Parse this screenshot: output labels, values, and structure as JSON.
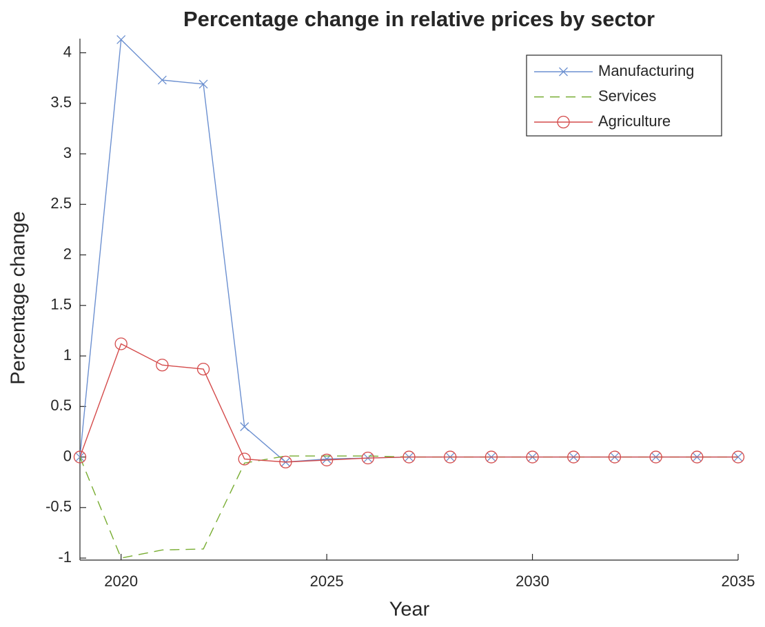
{
  "chart_data": {
    "type": "line",
    "title": "Percentage change in relative prices by sector",
    "x_label": "Year",
    "y_label": "Percentage change",
    "x": [
      2019,
      2020,
      2021,
      2022,
      2023,
      2024,
      2025,
      2026,
      2027,
      2028,
      2029,
      2030,
      2031,
      2032,
      2033,
      2034,
      2035
    ],
    "series": [
      {
        "name": "Manufacturing",
        "color": "#6b8fd0",
        "marker": "x",
        "line_style": "solid",
        "values": [
          0,
          4.13,
          3.73,
          3.69,
          0.3,
          -0.05,
          -0.02,
          -0.01,
          0,
          0,
          0,
          0,
          0,
          0,
          0,
          0,
          0
        ]
      },
      {
        "name": "Services",
        "color": "#77ac30",
        "marker": "none",
        "line_style": "dashed",
        "values": [
          0,
          -1.0,
          -0.92,
          -0.91,
          -0.06,
          0.01,
          0.01,
          0.01,
          0,
          0,
          0,
          0,
          0,
          0,
          0,
          0,
          0
        ]
      },
      {
        "name": "Agriculture",
        "color": "#d44a4a",
        "marker": "o",
        "line_style": "solid",
        "values": [
          0,
          1.12,
          0.91,
          0.87,
          -0.02,
          -0.05,
          -0.03,
          -0.01,
          0,
          0,
          0,
          0,
          0,
          0,
          0,
          0,
          0
        ]
      }
    ],
    "xlim": [
      2019,
      2035
    ],
    "xticks": [
      2020,
      2025,
      2030,
      2035
    ],
    "ylim": [
      -1.02,
      4.14
    ],
    "yticks": [
      -1,
      -0.5,
      0,
      0.5,
      1,
      1.5,
      2,
      2.5,
      3,
      3.5,
      4
    ],
    "legend": "top-right",
    "grid": false
  }
}
